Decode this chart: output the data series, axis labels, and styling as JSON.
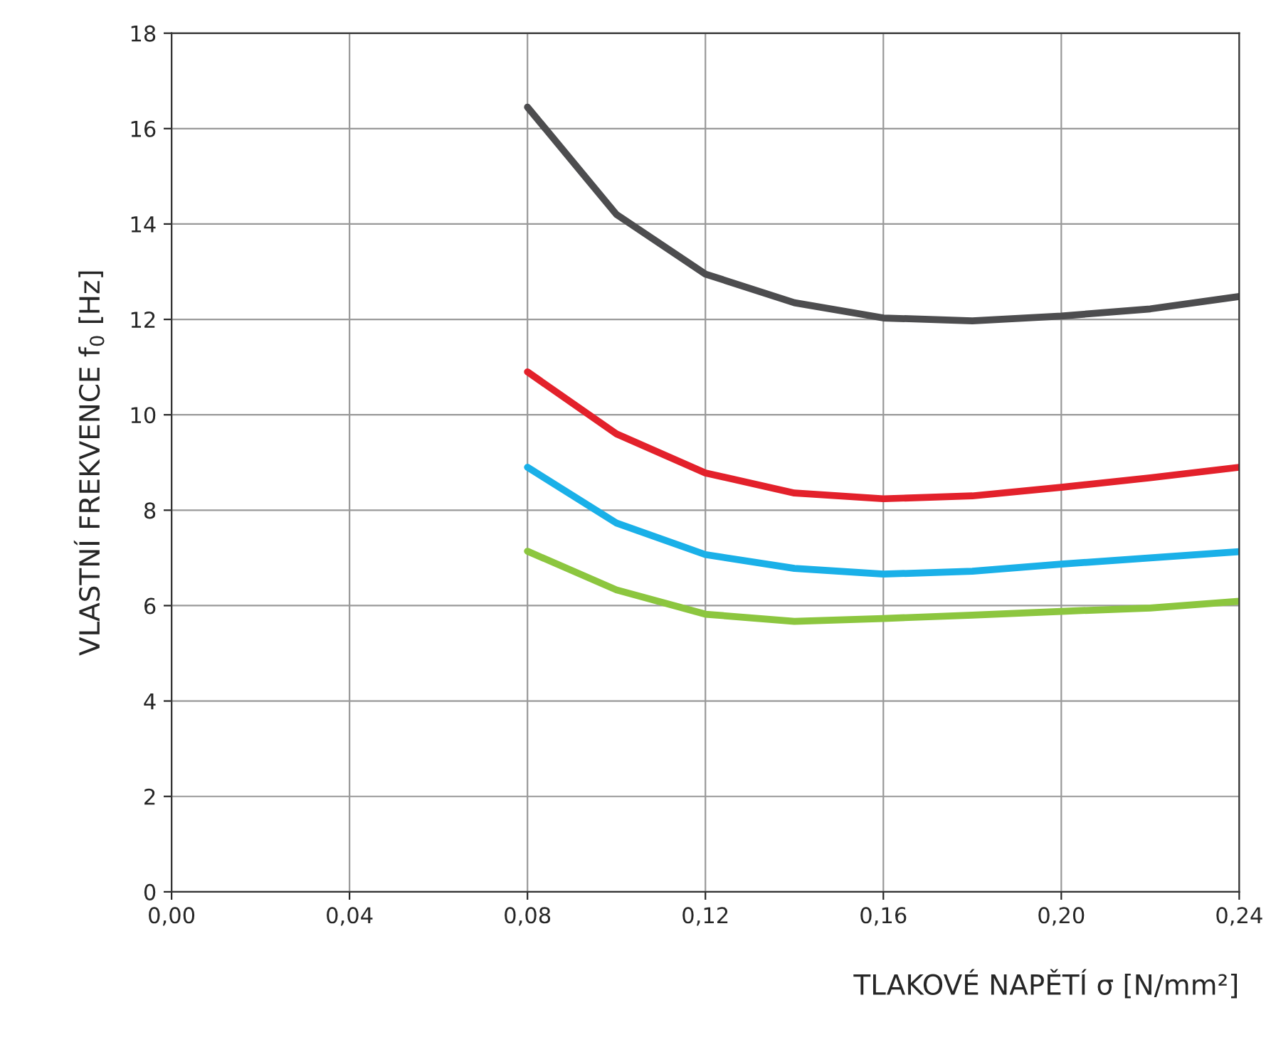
{
  "chart_data": {
    "type": "line",
    "xlabel": "TLAKOVÉ NAPĚTÍ σ [N/mm²]",
    "ylabel": "VLASTNÍ FREKVENCE f$_{0}$ [Hz]",
    "x": [
      0.08,
      0.1,
      0.12,
      0.14,
      0.16,
      0.18,
      0.2,
      0.22,
      0.24
    ],
    "series": [
      {
        "color": "#4d4d4f",
        "values": [
          16.45,
          14.2,
          12.95,
          12.35,
          12.03,
          11.97,
          12.07,
          12.22,
          12.48
        ]
      },
      {
        "color": "#e3212b",
        "values": [
          10.9,
          9.6,
          8.78,
          8.36,
          8.24,
          8.3,
          8.48,
          8.68,
          8.9
        ]
      },
      {
        "color": "#1ab0e8",
        "values": [
          8.9,
          7.73,
          7.07,
          6.78,
          6.66,
          6.72,
          6.87,
          7.0,
          7.13
        ]
      },
      {
        "color": "#8cc63f",
        "values": [
          7.14,
          6.33,
          5.82,
          5.67,
          5.73,
          5.8,
          5.88,
          5.95,
          6.09
        ]
      }
    ],
    "xlim": [
      0,
      0.24
    ],
    "ylim": [
      0,
      18
    ],
    "xticks": [
      {
        "value": 0,
        "label": "0,00"
      },
      {
        "value": 0.04,
        "label": "0,04"
      },
      {
        "value": 0.08,
        "label": "0,08"
      },
      {
        "value": 0.12,
        "label": "0,12"
      },
      {
        "value": 0.16,
        "label": "0,16"
      },
      {
        "value": 0.2,
        "label": "0,20"
      },
      {
        "value": 0.24,
        "label": "0,24"
      }
    ],
    "yticks": [
      0,
      2,
      4,
      6,
      8,
      10,
      12,
      14,
      16,
      18
    ],
    "grid": true,
    "line_style": "solid",
    "marker": "none"
  }
}
